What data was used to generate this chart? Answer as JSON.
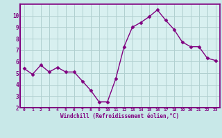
{
  "x": [
    0,
    1,
    2,
    3,
    4,
    5,
    6,
    7,
    8,
    9,
    10,
    11,
    12,
    13,
    14,
    15,
    16,
    17,
    18,
    19,
    20,
    21,
    22,
    23
  ],
  "y": [
    5.4,
    4.9,
    5.7,
    5.1,
    5.5,
    5.1,
    5.1,
    4.3,
    3.5,
    2.5,
    2.5,
    4.5,
    7.3,
    9.0,
    9.4,
    9.9,
    10.5,
    9.6,
    8.8,
    7.7,
    7.3,
    7.3,
    6.3,
    6.1
  ],
  "line_color": "#800080",
  "marker": "D",
  "marker_size": 2.5,
  "bg_color": "#c8e8e8",
  "plot_bg_color": "#d8f0f0",
  "grid_color": "#b0d0d0",
  "xlabel": "Windchill (Refroidissement éolien,°C)",
  "xlabel_color": "#800080",
  "tick_color": "#800080",
  "xlim": [
    -0.5,
    23.5
  ],
  "ylim": [
    2,
    11
  ],
  "yticks": [
    2,
    3,
    4,
    5,
    6,
    7,
    8,
    9,
    10
  ],
  "xticks": [
    0,
    1,
    2,
    3,
    4,
    5,
    6,
    7,
    8,
    9,
    10,
    11,
    12,
    13,
    14,
    15,
    16,
    17,
    18,
    19,
    20,
    21,
    22,
    23
  ],
  "spine_color": "#800080",
  "axis_bg_color": "#800080"
}
